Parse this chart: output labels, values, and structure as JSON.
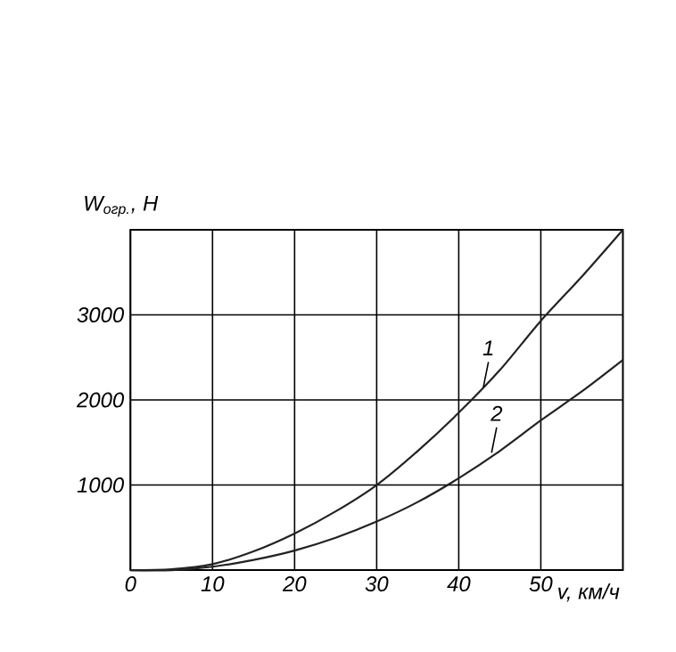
{
  "chart_data": {
    "type": "line",
    "ylabel": "W$_{огр.}$, Н",
    "xlabel": "v, км/ч",
    "xlim": [
      0,
      60
    ],
    "ylim": [
      0,
      4000
    ],
    "xticks": [
      0,
      10,
      20,
      30,
      40,
      50
    ],
    "yticks": [
      1000,
      2000,
      3000
    ],
    "grid": true,
    "marker": "none",
    "line_style": "solid",
    "series": [
      {
        "color": "#222222",
        "x": [
          0,
          5,
          10,
          15,
          20,
          25,
          30,
          35,
          40,
          45,
          50,
          55,
          60
        ],
        "values": [
          0,
          10,
          70,
          220,
          430,
          690,
          1000,
          1400,
          1850,
          2350,
          2930,
          3450,
          4000
        ]
      },
      {
        "color": "#222222",
        "x": [
          0,
          5,
          10,
          15,
          20,
          25,
          30,
          35,
          40,
          45,
          50,
          55,
          60
        ],
        "values": [
          0,
          0,
          40,
          120,
          230,
          380,
          570,
          800,
          1080,
          1400,
          1760,
          2100,
          2470
        ]
      }
    ],
    "annotations": [
      {
        "text": "1",
        "x": 43,
        "y": 2150
      },
      {
        "text": "2",
        "x": 44,
        "y": 1380
      }
    ]
  }
}
